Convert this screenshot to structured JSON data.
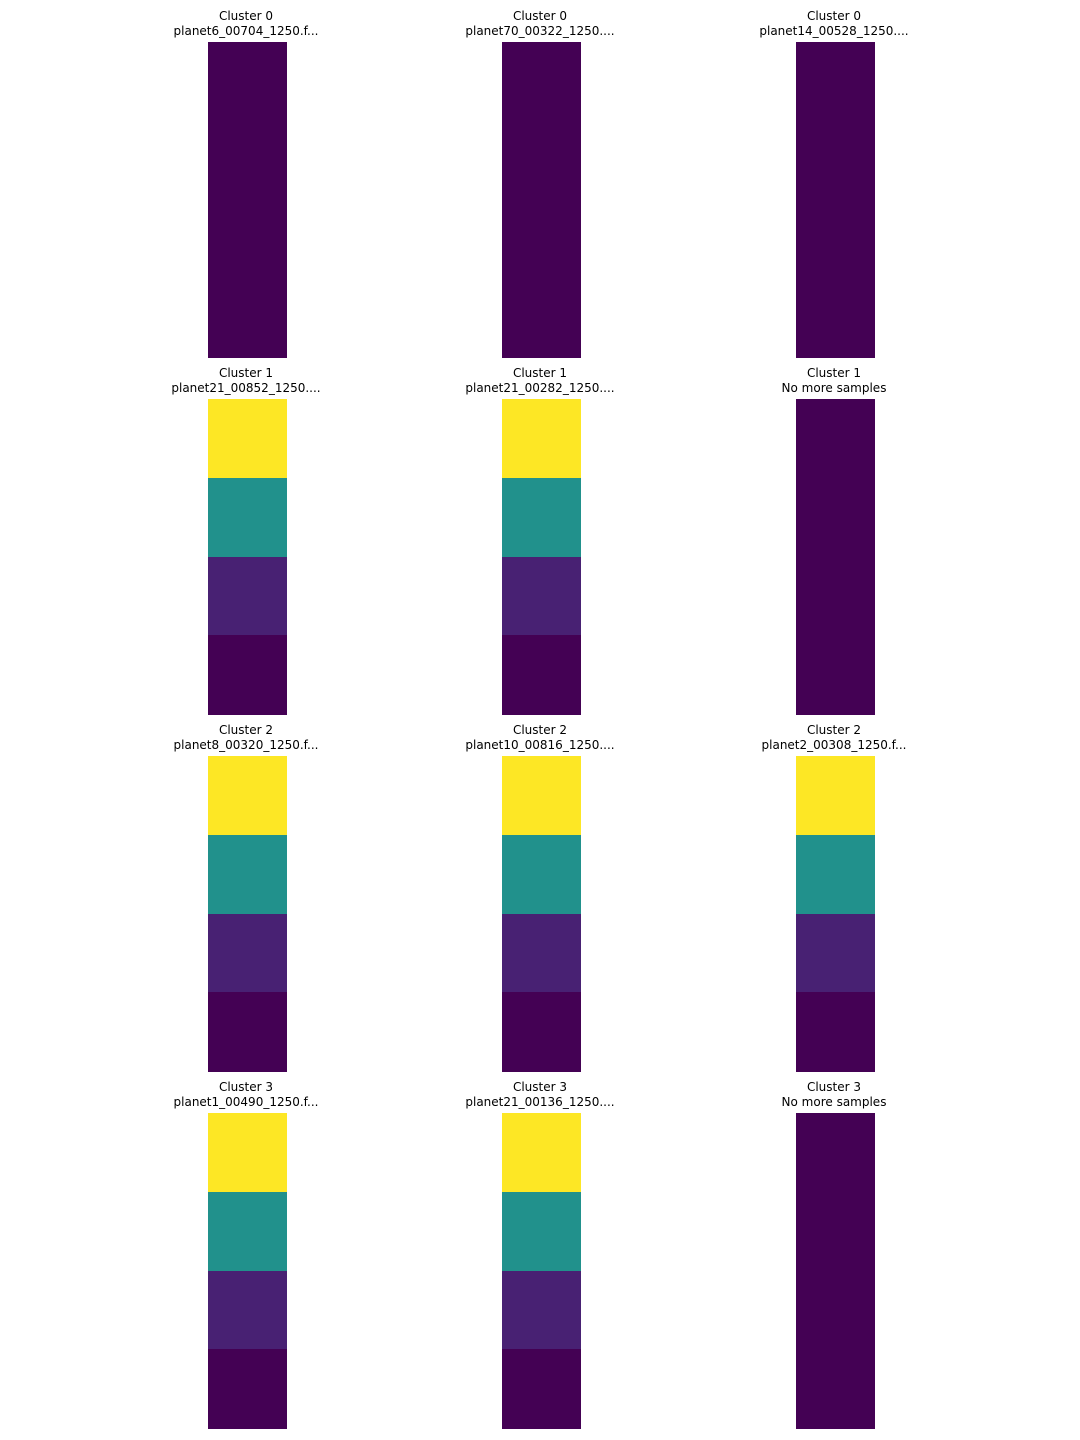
{
  "chart_data": [
    {
      "type": "heatmap",
      "title": "Cluster 0",
      "subtitle": "planet6_00704_1250.f...",
      "values": [
        0,
        0,
        0,
        0
      ]
    },
    {
      "type": "heatmap",
      "title": "Cluster 0",
      "subtitle": "planet70_00322_1250....",
      "values": [
        0,
        0,
        0,
        0
      ]
    },
    {
      "type": "heatmap",
      "title": "Cluster 0",
      "subtitle": "planet14_00528_1250....",
      "values": [
        0,
        0,
        0,
        0
      ]
    },
    {
      "type": "heatmap",
      "title": "Cluster 1",
      "subtitle": "planet21_00852_1250....",
      "values": [
        3,
        2,
        1,
        0
      ]
    },
    {
      "type": "heatmap",
      "title": "Cluster 1",
      "subtitle": "planet21_00282_1250....",
      "values": [
        3,
        2,
        1,
        0
      ]
    },
    {
      "type": "heatmap",
      "title": "Cluster 1",
      "subtitle": "No more samples",
      "values": [
        0,
        0,
        0,
        0
      ]
    },
    {
      "type": "heatmap",
      "title": "Cluster 2",
      "subtitle": "planet8_00320_1250.f...",
      "values": [
        3,
        2,
        1,
        0
      ]
    },
    {
      "type": "heatmap",
      "title": "Cluster 2",
      "subtitle": "planet10_00816_1250....",
      "values": [
        3,
        2,
        1,
        0
      ]
    },
    {
      "type": "heatmap",
      "title": "Cluster 2",
      "subtitle": "planet2_00308_1250.f...",
      "values": [
        3,
        2,
        1,
        0
      ]
    },
    {
      "type": "heatmap",
      "title": "Cluster 3",
      "subtitle": "planet1_00490_1250.f...",
      "values": [
        3,
        2,
        1,
        0
      ]
    },
    {
      "type": "heatmap",
      "title": "Cluster 3",
      "subtitle": "planet21_00136_1250....",
      "values": [
        3,
        2,
        1,
        0
      ]
    },
    {
      "type": "heatmap",
      "title": "Cluster 3",
      "subtitle": "No more samples",
      "values": [
        0,
        0,
        0,
        0
      ]
    }
  ],
  "colormap": {
    "name": "viridis",
    "levels": [
      "#440154",
      "#482173",
      "#21918c",
      "#fde725"
    ]
  }
}
